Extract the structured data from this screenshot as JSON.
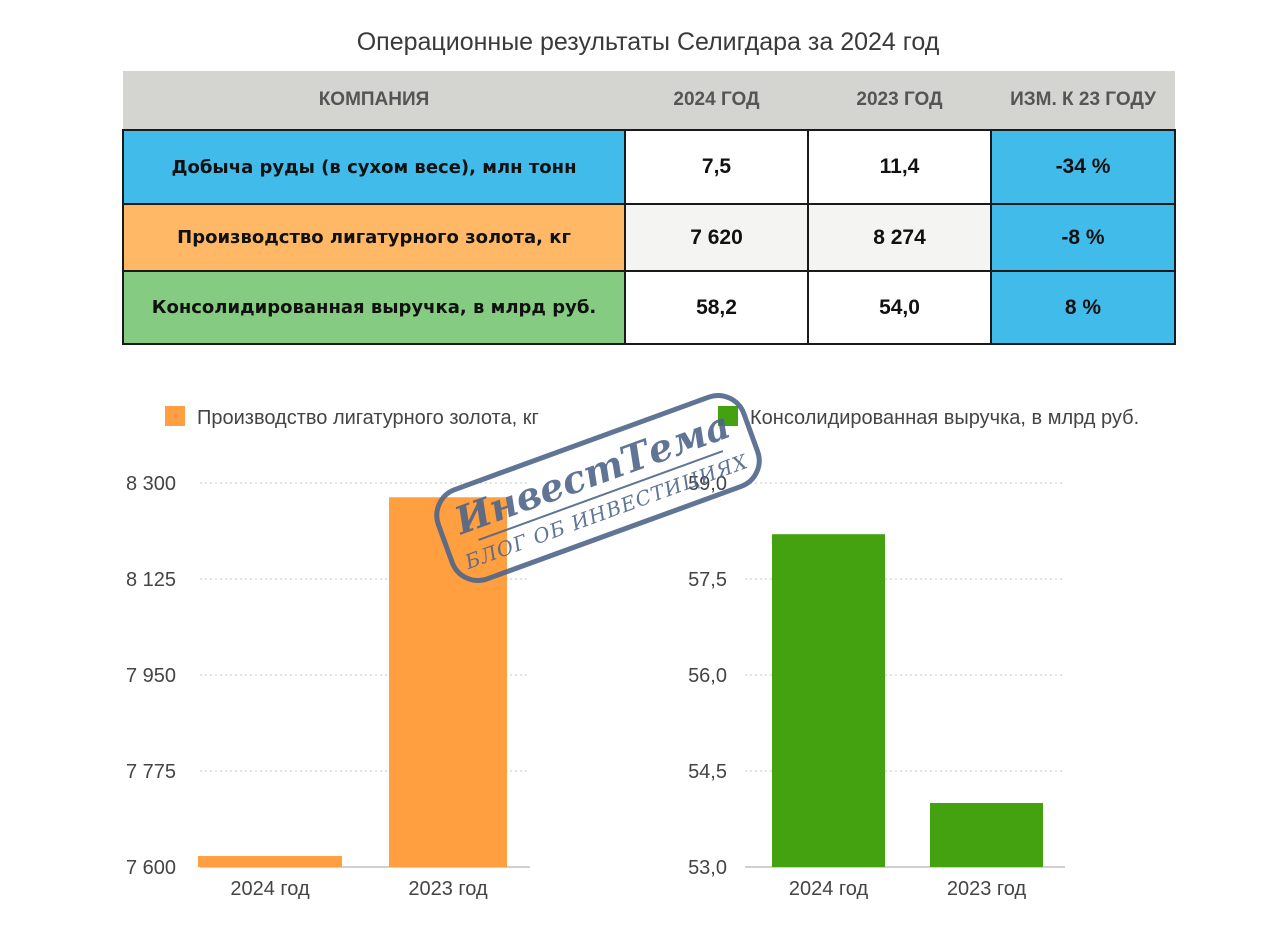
{
  "title": "Операционные результаты Селигдара за 2024 год",
  "table": {
    "headers": [
      "КОМПАНИЯ",
      "2024 ГОД",
      "2023 ГОД",
      "ИЗМ. К 23 ГОДУ"
    ],
    "rows": [
      {
        "label": "Добыча руды (в сухом весе), млн тонн",
        "y2024": "7,5",
        "y2023": "11,4",
        "change": "-34 %"
      },
      {
        "label": "Производство лигатурного золота, кг",
        "y2024": "7 620",
        "y2023": "8 274",
        "change": "-8 %"
      },
      {
        "label": "Консолидированная выручка, в млрд руб.",
        "y2024": "58,2",
        "y2023": "54,0",
        "change": "8 %"
      }
    ]
  },
  "watermark": {
    "brand": "ИнвестТема",
    "tagline": "БЛОГ ОБ ИНВЕСТИЦИЯХ"
  },
  "chart_data": [
    {
      "type": "bar",
      "legend": "Производство лигатурного золота, кг",
      "color": "#ff9f40",
      "categories": [
        "2024 год",
        "2023 год"
      ],
      "values": [
        7620,
        8274
      ],
      "ylim": [
        7600,
        8300
      ],
      "ticks": [
        7600,
        7775,
        7950,
        8125,
        8300
      ],
      "tick_labels": [
        "7 600",
        "7 775",
        "7 950",
        "8 125",
        "8 300"
      ]
    },
    {
      "type": "bar",
      "legend": "Консолидированная выручка, в млрд руб.",
      "color": "#44a211",
      "categories": [
        "2024 год",
        "2023 год"
      ],
      "values": [
        58.2,
        54.0
      ],
      "ylim": [
        53.0,
        59.0
      ],
      "ticks": [
        53.0,
        54.5,
        56.0,
        57.5,
        59.0
      ],
      "tick_labels": [
        "53,0",
        "54,5",
        "56,0",
        "57,5",
        "59,0"
      ]
    }
  ]
}
